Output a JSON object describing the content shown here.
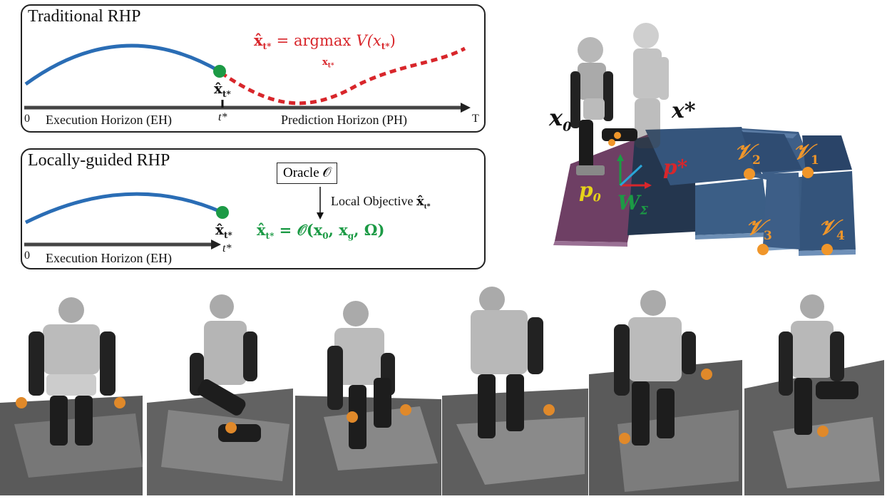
{
  "traditional": {
    "title": "Traditional RHP",
    "eq_lhs": "x̂",
    "eq_lhs_sub": "t*",
    "eq_eq": "= argmax",
    "eq_fun": "V(x",
    "eq_fun_sub": "t*",
    "eq_close": ")",
    "eq_under": "x",
    "eq_under_sub": "t*",
    "point_label": "x̂",
    "point_label_sub": "t*",
    "axis_start": "0",
    "eh_label": "Execution Horizon (EH)",
    "tick_label": "t*",
    "ph_label": "Prediction Horizon (PH)",
    "axis_end": "T"
  },
  "locally_guided": {
    "title": "Locally-guided RHP",
    "oracle": "Oracle 𝒪",
    "local_objective": "Local Objective",
    "local_obj_sym": "x̂",
    "local_obj_sub": "t*",
    "point_label": "x̂",
    "point_label_sub": "t*",
    "eq": "= 𝒪(x",
    "eq_sub0": "0",
    "eq_mid": ", x",
    "eq_subg": "g",
    "eq_end": ", Ω)",
    "eq_lhs": "x̂",
    "eq_lhs_sub": "t*",
    "axis_start": "0",
    "eh_label": "Execution Horizon (EH)",
    "tick_label": "t*"
  },
  "scene": {
    "x0": "x",
    "x0_sub": "0",
    "xstar": "x*",
    "p0": "p",
    "p0_sub": "0",
    "pstar": "p*",
    "w": "W",
    "w_sub": "Σ",
    "v1": "𝒱",
    "v1_sub": "1",
    "v2": "𝒱",
    "v2_sub": "2",
    "v3": "𝒱",
    "v3_sub": "3",
    "v4": "𝒱",
    "v4_sub": "4"
  },
  "colors": {
    "blue_traj": "#2a6db5",
    "red_traj": "#d8262b",
    "green_point": "#1c9a45",
    "orange": "#f0962a",
    "yellow": "#e6d21a"
  },
  "icons": [
    "humanoid-robot",
    "stepping-stone"
  ]
}
